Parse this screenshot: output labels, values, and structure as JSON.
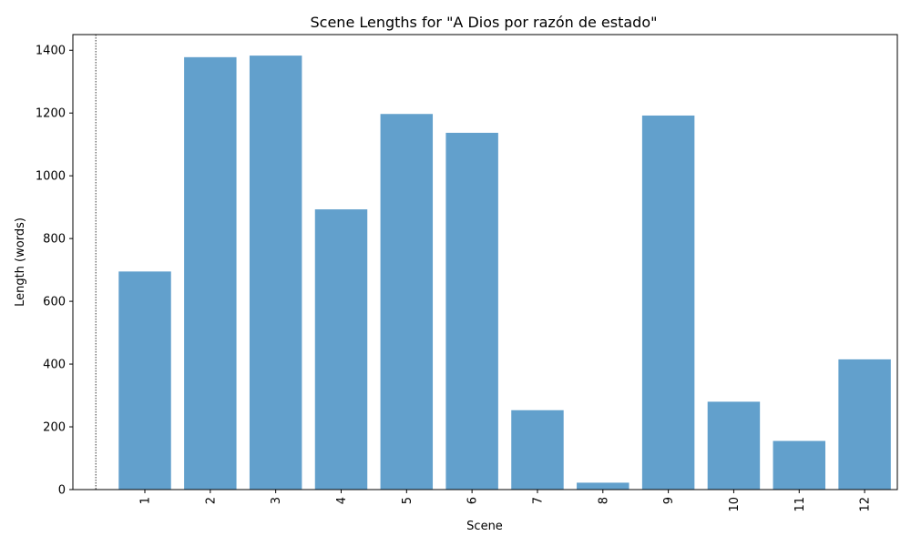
{
  "chart_data": {
    "type": "bar",
    "title": "Scene Lengths for \"A Dios por razón de estado\"",
    "xlabel": "Scene",
    "ylabel": "Length (words)",
    "categories": [
      "1",
      "2",
      "3",
      "4",
      "5",
      "6",
      "7",
      "8",
      "9",
      "10",
      "11",
      "12"
    ],
    "values": [
      695,
      1378,
      1383,
      893,
      1197,
      1137,
      253,
      22,
      1192,
      280,
      155,
      415
    ],
    "ylim": [
      0,
      1450
    ],
    "yticks": [
      "0",
      "200",
      "400",
      "600",
      "800",
      "1000",
      "1200",
      "1400"
    ],
    "bar_color": "#62a0cc",
    "grid": false,
    "x_tick_rotation": "vertical",
    "reference_line": {
      "position": "before-first-bar",
      "style": "dotted",
      "color": "#000000"
    }
  }
}
